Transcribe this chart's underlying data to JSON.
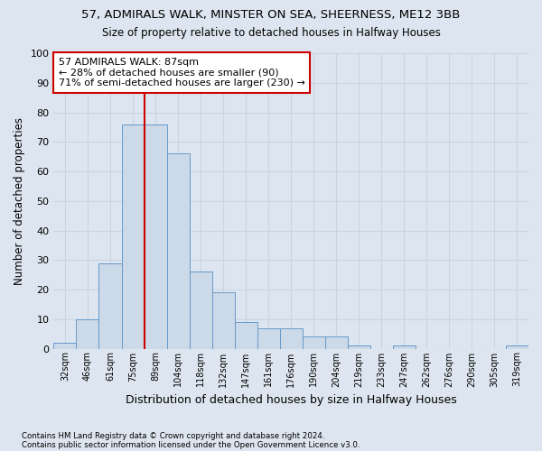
{
  "title1": "57, ADMIRALS WALK, MINSTER ON SEA, SHEERNESS, ME12 3BB",
  "title2": "Size of property relative to detached houses in Halfway Houses",
  "xlabel": "Distribution of detached houses by size in Halfway Houses",
  "ylabel": "Number of detached properties",
  "footnote1": "Contains HM Land Registry data © Crown copyright and database right 2024.",
  "footnote2": "Contains public sector information licensed under the Open Government Licence v3.0.",
  "bar_labels": [
    "32sqm",
    "46sqm",
    "61sqm",
    "75sqm",
    "89sqm",
    "104sqm",
    "118sqm",
    "132sqm",
    "147sqm",
    "161sqm",
    "176sqm",
    "190sqm",
    "204sqm",
    "219sqm",
    "233sqm",
    "247sqm",
    "262sqm",
    "276sqm",
    "290sqm",
    "305sqm",
    "319sqm"
  ],
  "bar_values": [
    2,
    10,
    29,
    76,
    76,
    66,
    26,
    19,
    9,
    7,
    7,
    4,
    4,
    1,
    0,
    1,
    0,
    0,
    0,
    0,
    1
  ],
  "bar_color": "#ccd9e8",
  "bar_edge_color": "#6699cc",
  "grid_color": "#c8d4e4",
  "background_color": "#dde6f0",
  "red_line_index": 4,
  "annotation_text": "57 ADMIRALS WALK: 87sqm\n← 28% of detached houses are smaller (90)\n71% of semi-detached houses are larger (230) →",
  "annotation_box_color": "#ffffff",
  "annotation_box_edge": "#cc0000",
  "red_line_color": "#cc0000",
  "ylim": [
    0,
    100
  ],
  "yticks": [
    0,
    10,
    20,
    30,
    40,
    50,
    60,
    70,
    80,
    90,
    100
  ]
}
